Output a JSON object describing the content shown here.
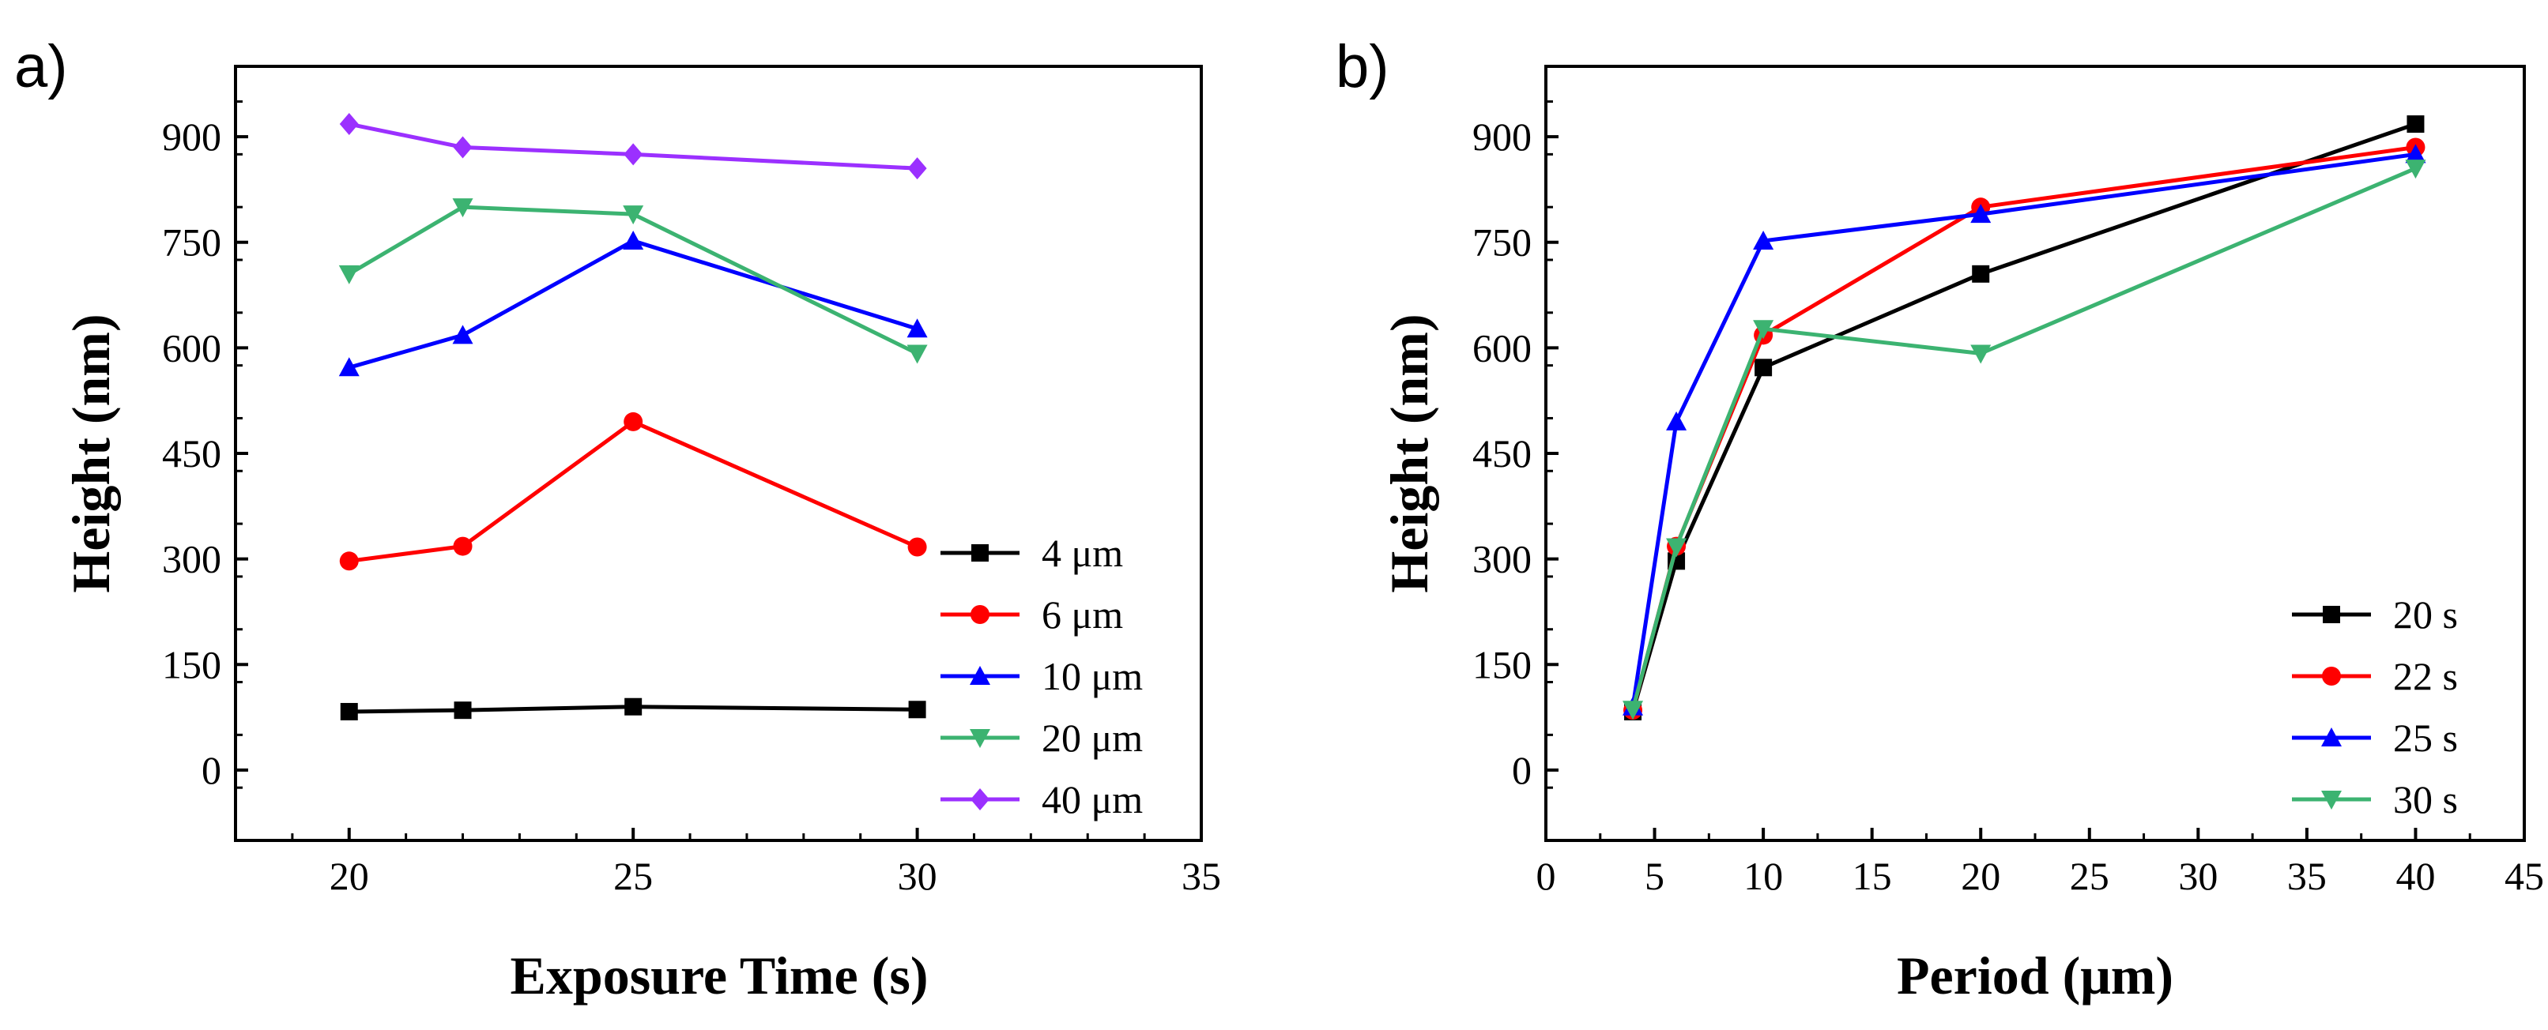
{
  "chart_data": [
    {
      "type": "line",
      "panel_label": "a)",
      "title": "",
      "xlabel": "Exposure Time (s)",
      "ylabel": "Height (nm)",
      "xlim": [
        18,
        35
      ],
      "ylim": [
        -100,
        1000
      ],
      "xticks": [
        20,
        25,
        30,
        35
      ],
      "yticks": [
        0,
        150,
        300,
        450,
        600,
        750,
        900
      ],
      "x_minor_step": 1,
      "y_minor_step": 75,
      "grid": false,
      "legend_position": "bottom-right",
      "x": [
        20,
        22,
        25,
        30
      ],
      "series": [
        {
          "name": "4 μm",
          "color": "#000000",
          "marker": "square",
          "values": [
            83,
            85,
            90,
            86
          ]
        },
        {
          "name": "6 μm",
          "color": "#ff0000",
          "marker": "circle",
          "values": [
            297,
            318,
            495,
            317
          ]
        },
        {
          "name": "10 μm",
          "color": "#0000ff",
          "marker": "triangle-up",
          "values": [
            572,
            618,
            752,
            627
          ]
        },
        {
          "name": "20 μm",
          "color": "#3cb371",
          "marker": "triangle-down",
          "values": [
            705,
            800,
            790,
            592
          ]
        },
        {
          "name": "40 μm",
          "color": "#9b30ff",
          "marker": "diamond",
          "values": [
            918,
            885,
            875,
            855
          ]
        }
      ]
    },
    {
      "type": "line",
      "panel_label": "b)",
      "title": "",
      "xlabel": "Period (μm)",
      "ylabel": "Height (nm)",
      "xlim": [
        0,
        45
      ],
      "ylim": [
        -100,
        1000
      ],
      "xticks": [
        0,
        5,
        10,
        15,
        20,
        25,
        30,
        35,
        40,
        45
      ],
      "yticks": [
        0,
        150,
        300,
        450,
        600,
        750,
        900
      ],
      "x_minor_step": 2.5,
      "y_minor_step": 75,
      "grid": false,
      "legend_position": "bottom-right",
      "x": [
        4,
        6,
        10,
        20,
        40
      ],
      "series": [
        {
          "name": "20 s",
          "color": "#000000",
          "marker": "square",
          "values": [
            83,
            297,
            572,
            705,
            918
          ]
        },
        {
          "name": "22 s",
          "color": "#ff0000",
          "marker": "circle",
          "values": [
            85,
            318,
            618,
            800,
            885
          ]
        },
        {
          "name": "25 s",
          "color": "#0000ff",
          "marker": "triangle-up",
          "values": [
            90,
            495,
            752,
            790,
            875
          ]
        },
        {
          "name": "30 s",
          "color": "#3cb371",
          "marker": "triangle-down",
          "values": [
            86,
            317,
            627,
            592,
            855
          ]
        }
      ]
    }
  ]
}
